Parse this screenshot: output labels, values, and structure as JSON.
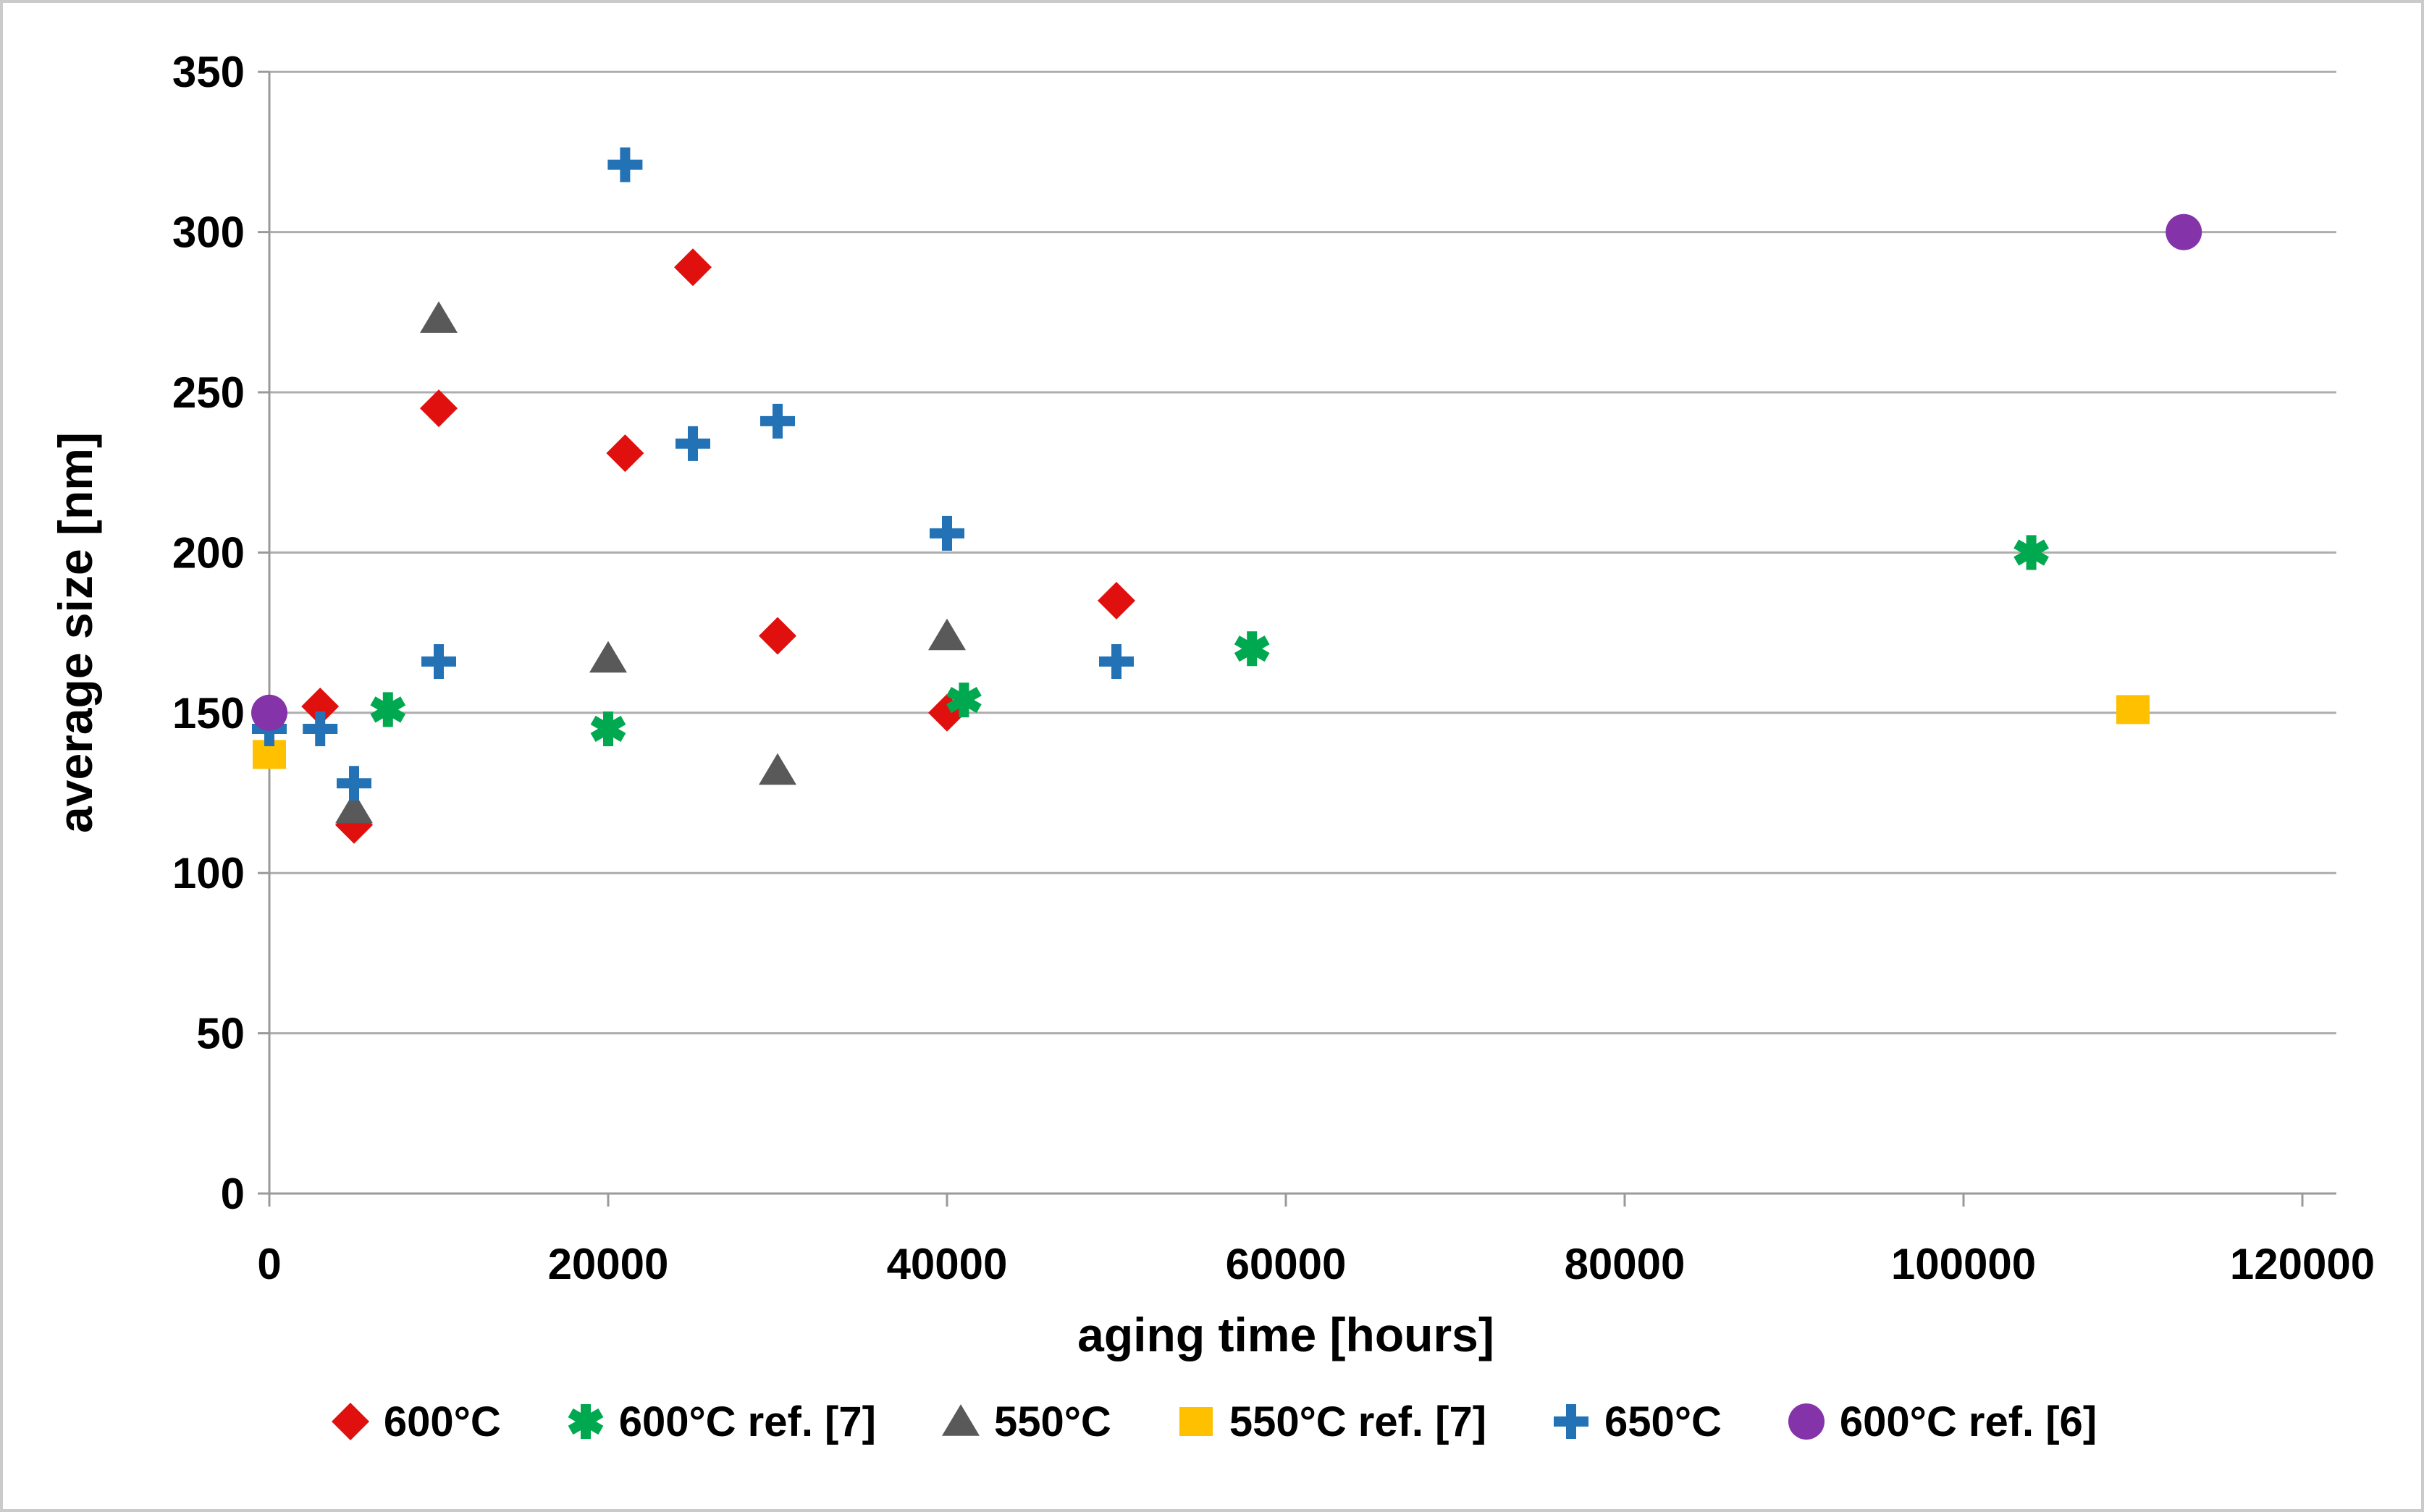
{
  "chart_data": {
    "type": "scatter",
    "title": "",
    "xlabel": "aging time [hours]",
    "ylabel": "average size [nm]",
    "xlim": [
      0,
      122000
    ],
    "ylim": [
      0,
      350
    ],
    "x_ticks": [
      0,
      20000,
      40000,
      60000,
      80000,
      100000,
      120000
    ],
    "y_ticks": [
      0,
      50,
      100,
      150,
      200,
      250,
      300,
      350
    ],
    "grid": "horizontal-only",
    "legend_position": "bottom",
    "colors": {
      "axis": "#9a9a9a",
      "gridline": "#adadad",
      "text": "#000000",
      "background": "#ffffff",
      "frame_border": "#cbcbcb"
    },
    "series": [
      {
        "name": "600°C",
        "marker": "diamond",
        "color": "#e0100e",
        "points": [
          [
            3000,
            152
          ],
          [
            5000,
            115
          ],
          [
            10000,
            245
          ],
          [
            21000,
            231
          ],
          [
            25000,
            289
          ],
          [
            30000,
            174
          ],
          [
            40000,
            150
          ],
          [
            50000,
            185
          ]
        ]
      },
      {
        "name": "600°C ref. [7]",
        "marker": "asterisk",
        "color": "#00a94f",
        "points": [
          [
            7000,
            151
          ],
          [
            20000,
            145
          ],
          [
            41000,
            154
          ],
          [
            58000,
            170
          ],
          [
            104000,
            200
          ]
        ]
      },
      {
        "name": "550°C",
        "marker": "triangle",
        "color": "#595959",
        "points": [
          [
            5000,
            120
          ],
          [
            10000,
            273
          ],
          [
            20000,
            167
          ],
          [
            30000,
            132
          ],
          [
            40000,
            174
          ]
        ]
      },
      {
        "name": "550°C ref. [7]",
        "marker": "square",
        "color": "#ffc000",
        "points": [
          [
            0,
            137
          ],
          [
            110000,
            151
          ]
        ]
      },
      {
        "name": "650°C",
        "marker": "plus",
        "color": "#2272b5",
        "points": [
          [
            0,
            145
          ],
          [
            3000,
            145
          ],
          [
            5000,
            128
          ],
          [
            10000,
            166
          ],
          [
            21000,
            321
          ],
          [
            25000,
            234
          ],
          [
            30000,
            241
          ],
          [
            40000,
            206
          ],
          [
            50000,
            166
          ]
        ]
      },
      {
        "name": "600°C ref. [6]",
        "marker": "circle",
        "color": "#8433a8",
        "points": [
          [
            0,
            150
          ],
          [
            113000,
            300
          ]
        ]
      }
    ]
  }
}
